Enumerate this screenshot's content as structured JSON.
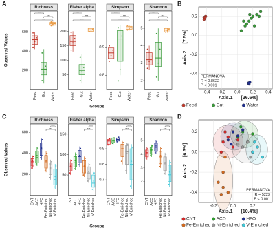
{
  "chart_data": [
    {
      "type": "box",
      "label": "A",
      "ylabel": "Observed Values",
      "xlabel": "Groups",
      "categories": [
        "Feed",
        "Gut",
        "Water"
      ],
      "colors": [
        "#c0392b",
        "#3a9a3a",
        "#e8963c"
      ],
      "facets": [
        {
          "title": "Richness",
          "ylim": [
            0,
            820
          ],
          "yticks": [
            200,
            400,
            600
          ],
          "signif": [
            "***",
            "***",
            "***"
          ],
          "boxes": [
            {
              "low": 420,
              "q1": 470,
              "median": 520,
              "q3": 560,
              "high": 600,
              "points": [
                440,
                500,
                540,
                590
              ]
            },
            {
              "low": 60,
              "q1": 150,
              "median": 210,
              "q3": 280,
              "high": 420,
              "points": [
                90,
                180,
                240,
                380
              ]
            },
            {
              "low": 660,
              "q1": 670,
              "median": 685,
              "q3": 700,
              "high": 710,
              "points": [
                665,
                680,
                690,
                705
              ]
            }
          ]
        },
        {
          "title": "Fisher alpha",
          "ylim": [
            0,
            270
          ],
          "yticks": [
            50,
            100,
            150,
            200
          ],
          "signif": [
            "***",
            "***",
            "***"
          ],
          "boxes": [
            {
              "low": 130,
              "q1": 150,
              "median": 165,
              "q3": 185,
              "high": 200,
              "points": [
                135,
                160,
                175,
                195
              ]
            },
            {
              "low": 20,
              "q1": 50,
              "median": 65,
              "q3": 85,
              "high": 120,
              "points": [
                30,
                60,
                75,
                110
              ]
            },
            {
              "low": 198,
              "q1": 200,
              "median": 205,
              "q3": 210,
              "high": 212,
              "points": [
                199,
                204,
                207,
                211
              ]
            }
          ]
        },
        {
          "title": "Simpson",
          "ylim": [
            0.75,
            1.03
          ],
          "yticks": [
            0.8,
            0.9
          ],
          "signif": [
            "***",
            "***",
            "***"
          ],
          "boxes": [
            {
              "low": 0.84,
              "q1": 0.86,
              "median": 0.88,
              "q3": 0.9,
              "high": 0.91,
              "points": [
                0.85,
                0.87,
                0.89,
                0.905
              ]
            },
            {
              "low": 0.8,
              "q1": 0.85,
              "median": 0.93,
              "q3": 0.96,
              "high": 0.98,
              "points": [
                0.78,
                0.82,
                0.94,
                0.97
              ]
            },
            {
              "low": 0.96,
              "q1": 0.965,
              "median": 0.97,
              "q3": 0.975,
              "high": 0.98,
              "points": [
                0.962,
                0.968,
                0.972,
                0.978
              ]
            }
          ]
        },
        {
          "title": "Shannon",
          "ylim": [
            1.5,
            6.0
          ],
          "yticks": [
            2,
            3,
            4,
            5
          ],
          "signif": [
            "***",
            "***",
            "***"
          ],
          "boxes": [
            {
              "low": 2.6,
              "q1": 2.9,
              "median": 3.2,
              "q3": 3.6,
              "high": 4.0,
              "points": [
                2.7,
                3.1,
                3.4,
                3.8
              ]
            },
            {
              "low": 2.0,
              "q1": 2.8,
              "median": 3.3,
              "q3": 4.2,
              "high": 5.0,
              "points": [
                2.2,
                3.0,
                3.8,
                4.7
              ]
            },
            {
              "low": 4.75,
              "q1": 4.8,
              "median": 4.9,
              "q3": 5.0,
              "high": 5.05,
              "points": [
                4.78,
                4.88,
                4.95,
                5.02
              ]
            }
          ]
        }
      ]
    },
    {
      "type": "scatter",
      "label": "B",
      "xlabel": "Axis.1",
      "xlabel_note": "[26.6%]",
      "ylabel": "Axis.2",
      "ylabel_note": "[7.5%]",
      "xlim": [
        -0.5,
        0.45
      ],
      "ylim": [
        -0.56,
        0.3
      ],
      "xticks": [
        -0.4,
        -0.2,
        {
          "value": 0,
          "label": "0.0"
        },
        0.2,
        0.4
      ],
      "yticks": [
        -0.4,
        -0.2,
        {
          "value": 0,
          "label": "0.0"
        },
        0.2
      ],
      "grid": true,
      "ellipses": false,
      "annotation": [
        "PERMANOVA",
        "R = 0.8622",
        "P < 0.001"
      ],
      "annotation_corner": "bottom-left",
      "series": [
        {
          "name": "Feed",
          "color": "#c0392b",
          "x": [
            -0.43,
            -0.42,
            -0.41,
            -0.43,
            -0.42
          ],
          "y": [
            0.19,
            0.18,
            0.2,
            0.17,
            0.19
          ]
        },
        {
          "name": "Gut",
          "color": "#3a9a3a",
          "x": [
            0.05,
            0.1,
            0.15,
            0.2,
            0.25,
            0.3,
            0.12,
            0.18,
            0.22,
            0.28,
            0.08,
            0.16
          ],
          "y": [
            0.05,
            0.1,
            0.15,
            0.2,
            0.22,
            0.25,
            0.12,
            0.18,
            0.1,
            0.2,
            0.15,
            0.22
          ]
        },
        {
          "name": "Water",
          "color": "#1f2f8f",
          "x": [
            0.14,
            0.15,
            0.16,
            0.15
          ],
          "y": [
            -0.5,
            -0.51,
            -0.49,
            -0.5
          ]
        }
      ]
    },
    {
      "type": "box",
      "label": "C",
      "ylabel": "Observed Values",
      "xlabel": "Groups",
      "categories": [
        "CNT",
        "ACO",
        "HFO",
        "Fe-Enriched",
        "Ni-Enriched",
        "V-Enriched"
      ],
      "colors": [
        "#d62728",
        "#2ca02c",
        "#1f2f8f",
        "#d2691e",
        "#999999",
        "#40c8d8"
      ],
      "facets": [
        {
          "title": "Richness",
          "ylim": [
            0,
            680
          ],
          "yticks": [
            200,
            400,
            600
          ],
          "signif": [
            "***",
            "***"
          ],
          "boxes": [
            {
              "low": 250,
              "q1": 280,
              "median": 320,
              "q3": 350,
              "high": 380,
              "points": [
                260,
                330,
                370
              ]
            },
            {
              "low": 280,
              "q1": 310,
              "median": 360,
              "q3": 420,
              "high": 460,
              "points": [
                300,
                380,
                450
              ]
            },
            {
              "low": 340,
              "q1": 380,
              "median": 440,
              "q3": 500,
              "high": 540,
              "points": [
                360,
                450,
                530
              ]
            },
            {
              "low": 220,
              "q1": 260,
              "median": 320,
              "q3": 380,
              "high": 420,
              "points": [
                240,
                330,
                400
              ]
            },
            {
              "low": 150,
              "q1": 200,
              "median": 250,
              "q3": 300,
              "high": 340,
              "points": [
                170,
                260,
                320
              ]
            },
            {
              "low": 60,
              "q1": 100,
              "median": 150,
              "q3": 250,
              "high": 300,
              "points": [
                80,
                180,
                280
              ]
            }
          ]
        },
        {
          "title": "Fisher alpha",
          "ylim": [
            0,
            175
          ],
          "yticks": [
            50,
            100,
            150
          ],
          "signif": [
            "***",
            "***"
          ],
          "boxes": [
            {
              "low": 50,
              "q1": 60,
              "median": 70,
              "q3": 80,
              "high": 88,
              "points": [
                55,
                72,
                85
              ]
            },
            {
              "low": 62,
              "q1": 70,
              "median": 80,
              "q3": 95,
              "high": 105,
              "points": [
                65,
                85,
                100
              ]
            },
            {
              "low": 70,
              "q1": 80,
              "median": 95,
              "q3": 110,
              "high": 120,
              "points": [
                75,
                98,
                115
              ]
            },
            {
              "low": 45,
              "q1": 55,
              "median": 70,
              "q3": 85,
              "high": 95,
              "points": [
                50,
                72,
                90
              ]
            },
            {
              "low": 30,
              "q1": 40,
              "median": 55,
              "q3": 70,
              "high": 80,
              "points": [
                35,
                58,
                75
              ]
            },
            {
              "low": 10,
              "q1": 20,
              "median": 30,
              "q3": 50,
              "high": 60,
              "points": [
                15,
                35,
                55
              ]
            }
          ]
        },
        {
          "title": "Simpson",
          "ylim": [
            0.6,
            1.06
          ],
          "yticks": [
            0.7,
            0.8,
            0.9
          ],
          "signif": [
            "***",
            "***"
          ],
          "boxes": [
            {
              "low": 0.92,
              "q1": 0.93,
              "median": 0.95,
              "q3": 0.96,
              "high": 0.97,
              "points": [
                0.925,
                0.95,
                0.965
              ]
            },
            {
              "low": 0.93,
              "q1": 0.94,
              "median": 0.95,
              "q3": 0.97,
              "high": 0.975,
              "points": [
                0.935,
                0.955,
                0.97
              ]
            },
            {
              "low": 0.94,
              "q1": 0.95,
              "median": 0.96,
              "q3": 0.97,
              "high": 0.98,
              "points": [
                0.945,
                0.962,
                0.975
              ]
            },
            {
              "low": 0.8,
              "q1": 0.85,
              "median": 0.9,
              "q3": 0.93,
              "high": 0.95,
              "points": [
                0.82,
                0.9,
                0.94
              ]
            },
            {
              "low": 0.74,
              "q1": 0.8,
              "median": 0.88,
              "q3": 0.92,
              "high": 0.94,
              "points": [
                0.76,
                0.87,
                0.93
              ]
            },
            {
              "low": 0.64,
              "q1": 0.7,
              "median": 0.8,
              "q3": 0.9,
              "high": 0.93,
              "points": [
                0.66,
                0.82,
                0.91
              ]
            }
          ]
        },
        {
          "title": "Shannon",
          "ylim": [
            1,
            6.2
          ],
          "yticks": [
            2,
            3,
            4,
            5
          ],
          "signif": [
            "***",
            "***"
          ],
          "boxes": [
            {
              "low": 3.6,
              "q1": 3.8,
              "median": 4.1,
              "q3": 4.3,
              "high": 4.5,
              "points": [
                3.7,
                4.1,
                4.4
              ]
            },
            {
              "low": 3.8,
              "q1": 4.0,
              "median": 4.3,
              "q3": 4.5,
              "high": 4.7,
              "points": [
                3.9,
                4.3,
                4.6
              ]
            },
            {
              "low": 4.0,
              "q1": 4.2,
              "median": 4.5,
              "q3": 4.8,
              "high": 5.0,
              "points": [
                4.1,
                4.6,
                4.9
              ]
            },
            {
              "low": 3.0,
              "q1": 3.3,
              "median": 3.8,
              "q3": 4.2,
              "high": 4.5,
              "points": [
                3.1,
                3.9,
                4.4
              ]
            },
            {
              "low": 2.5,
              "q1": 2.8,
              "median": 3.3,
              "q3": 3.8,
              "high": 4.1,
              "points": [
                2.6,
                3.4,
                4.0
              ]
            },
            {
              "low": 1.6,
              "q1": 2.0,
              "median": 2.5,
              "q3": 3.2,
              "high": 3.6,
              "points": [
                1.8,
                2.7,
                3.4
              ]
            }
          ]
        }
      ]
    },
    {
      "type": "scatter",
      "label": "D",
      "xlabel": "Axis.1",
      "xlabel_note": "[10.4%]",
      "ylabel": "Axis.2",
      "ylabel_note": "[6.3%]",
      "xlim": [
        -0.35,
        0.4
      ],
      "ylim": [
        -0.5,
        0.32
      ],
      "xticks": [
        -0.2,
        {
          "value": 0,
          "label": "0.0"
        },
        0.2
      ],
      "yticks": [
        -0.4,
        -0.2,
        {
          "value": 0,
          "label": "0.0"
        },
        0.2
      ],
      "grid": true,
      "ellipses": true,
      "annotation": [
        "PERMANOVA",
        "R = 5223",
        "P < 0.001"
      ],
      "annotation_corner": "bottom-right",
      "series": [
        {
          "name": "CNT",
          "color": "#d62728",
          "x": [
            -0.1,
            -0.05,
            0.0,
            -0.08,
            0.05,
            -0.12
          ],
          "y": [
            0.1,
            0.15,
            0.05,
            0.2,
            0.12,
            0.0
          ]
        },
        {
          "name": "ACO",
          "color": "#2ca02c",
          "x": [
            0.05,
            0.1,
            0.15,
            0.2,
            0.08
          ],
          "y": [
            0.15,
            0.2,
            0.1,
            0.18,
            0.25
          ]
        },
        {
          "name": "HFO",
          "color": "#1f2f8f",
          "x": [
            -0.05,
            0.0,
            0.05,
            0.1,
            -0.02
          ],
          "y": [
            0.12,
            0.2,
            0.16,
            0.22,
            0.08
          ]
        },
        {
          "name": "Fe-Enriched",
          "color": "#d2691e",
          "x": [
            -0.15,
            -0.1,
            -0.05,
            -0.12,
            -0.08,
            -0.1
          ],
          "y": [
            -0.3,
            -0.35,
            -0.4,
            -0.42,
            -0.05,
            -0.2
          ]
        },
        {
          "name": "Ni-Enriched",
          "color": "#999999",
          "x": [
            0.1,
            0.15,
            0.2,
            0.18,
            0.05
          ],
          "y": [
            0.05,
            0.1,
            0.0,
            -0.05,
            0.08
          ]
        },
        {
          "name": "V-Enriched",
          "color": "#40c8d8",
          "x": [
            0.2,
            0.25,
            0.3,
            0.22
          ],
          "y": [
            0.0,
            0.05,
            -0.05,
            0.1
          ]
        }
      ]
    }
  ]
}
